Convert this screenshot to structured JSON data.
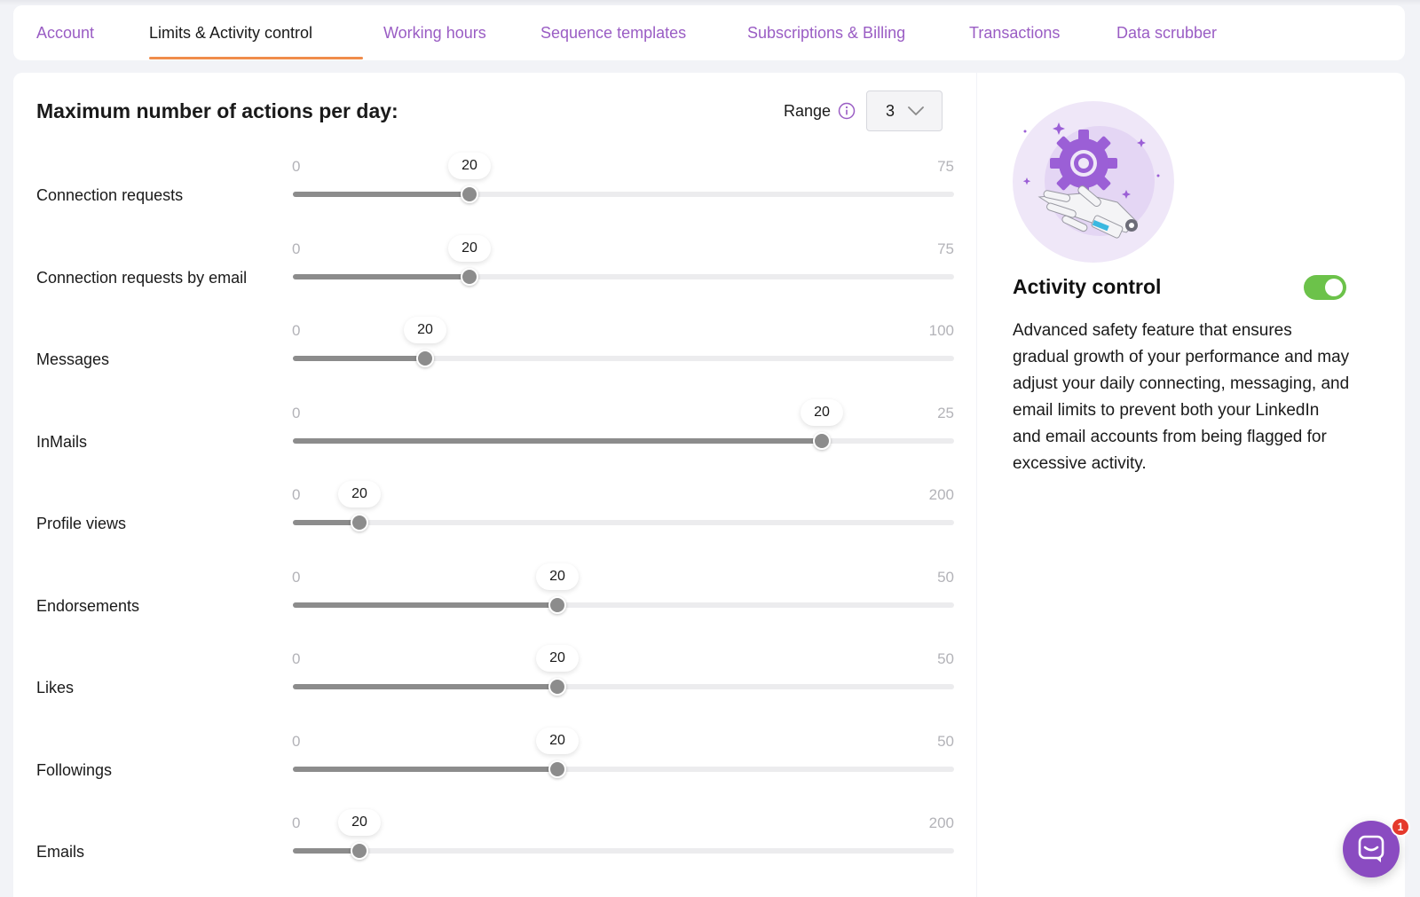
{
  "tabs": [
    {
      "label": "Account",
      "active": false
    },
    {
      "label": "Limits & Activity control",
      "active": true
    },
    {
      "label": "Working hours",
      "active": false
    },
    {
      "label": "Sequence templates",
      "active": false
    },
    {
      "label": "Subscriptions & Billing",
      "active": false
    },
    {
      "label": "Transactions",
      "active": false
    },
    {
      "label": "Data scrubber",
      "active": false
    }
  ],
  "limits": {
    "title": "Maximum number of actions per day:",
    "range_label": "Range",
    "range_info_icon": "info-icon",
    "range_value": "3",
    "sliders": [
      {
        "label": "Connection requests",
        "min": "0",
        "max": "75",
        "value": "20"
      },
      {
        "label": "Connection requests by email",
        "min": "0",
        "max": "75",
        "value": "20"
      },
      {
        "label": "Messages",
        "min": "0",
        "max": "100",
        "value": "20"
      },
      {
        "label": "InMails",
        "min": "0",
        "max": "25",
        "value": "20"
      },
      {
        "label": "Profile views",
        "min": "0",
        "max": "200",
        "value": "20"
      },
      {
        "label": "Endorsements",
        "min": "0",
        "max": "50",
        "value": "20"
      },
      {
        "label": "Likes",
        "min": "0",
        "max": "50",
        "value": "20"
      },
      {
        "label": "Followings",
        "min": "0",
        "max": "50",
        "value": "20"
      },
      {
        "label": "Emails",
        "min": "0",
        "max": "200",
        "value": "20"
      }
    ]
  },
  "activity_control": {
    "title": "Activity control",
    "enabled": true,
    "description": "Advanced safety feature that ensures gradual growth of your performance and may adjust your daily connecting, messaging, and email limits to prevent both your LinkedIn and email accounts from being flagged for excessive activity."
  },
  "chat": {
    "icon": "chat-icon",
    "badge_count": "1"
  },
  "colors": {
    "tab_text": "#9a5dc4",
    "tab_underline": "#f08c4b",
    "slider_fill": "#8c8c8c",
    "toggle_on": "#6cc24a",
    "chat_button": "#8a4bc1",
    "badge": "#e5392c"
  }
}
